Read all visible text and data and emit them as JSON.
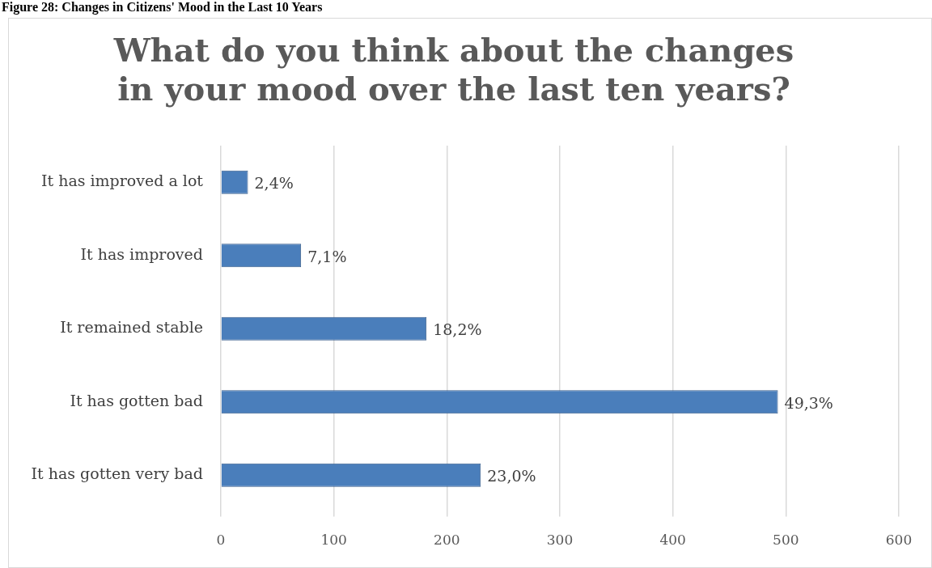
{
  "chart_data": {
    "type": "bar",
    "orientation": "horizontal",
    "title": "What do you think about the changes in your mood over the last ten years?",
    "annotations": [
      "Figure 28: Changes in Citizens' Mood in the Last 10 Years",
      {
        "text": "2,4%",
        "x": 24,
        "y": "It has improved a lot"
      },
      {
        "text": "7,1%",
        "x": 71,
        "y": "It has improved"
      },
      {
        "text": "18,2%",
        "x": 182,
        "y": "It remained stable"
      },
      {
        "text": "49,3%",
        "x": 493,
        "y": "It has gotten bad"
      },
      {
        "text": "23,0%",
        "x": 230,
        "y": "It has gotten very bad"
      }
    ],
    "categories": [
      "It has improved a lot",
      "It has improved",
      "It remained stable",
      "It has gotten bad",
      "It has gotten very bad"
    ],
    "values": [
      24,
      71,
      182,
      493,
      230
    ],
    "color": "#4a7ebb",
    "xlim": [
      0,
      600
    ],
    "xticks": [
      0,
      100,
      200,
      300,
      400,
      500,
      600
    ],
    "grid": "x"
  }
}
